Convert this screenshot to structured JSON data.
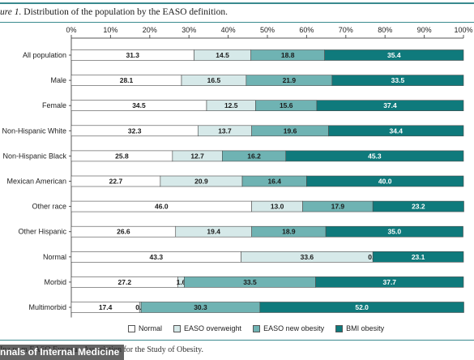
{
  "figure": {
    "label": "ure 1.",
    "title": "Distribution of the population by the EASO definition."
  },
  "footnote": {
    "text": "Ina    ro  m  EASO   Eur  pean Association for the Study of Obesity."
  },
  "brand": {
    "text": "nnals of Internal Medicine"
  },
  "colors": {
    "normal": "#ffffff",
    "easo_overweight": "#d6e9e9",
    "easo_new_obesity": "#6fb3b3",
    "bmi_obesity": "#0f7a7c"
  },
  "chart_data": {
    "type": "bar",
    "orientation": "horizontal",
    "stacked": true,
    "title": "Distribution of the population by the EASO definition.",
    "xlim": [
      0,
      100
    ],
    "x_ticks": [
      "0%",
      "10%",
      "20%",
      "30%",
      "40%",
      "50%",
      "60%",
      "70%",
      "80%",
      "90%",
      "100%"
    ],
    "legend_position": "bottom",
    "categories": [
      "All population",
      "Male",
      "Female",
      "Non-Hispanic White",
      "Non-Hispanic Black",
      "Mexican American",
      "Other race",
      "Other Hispanic",
      "Normal",
      "Morbid",
      "Multimorbid"
    ],
    "series": [
      {
        "name": "Normal",
        "values": [
          31.3,
          28.1,
          34.5,
          32.3,
          25.8,
          22.7,
          46.0,
          26.6,
          43.3,
          27.2,
          17.4
        ]
      },
      {
        "name": "EASO overweight",
        "values": [
          14.5,
          16.5,
          12.5,
          13.7,
          12.7,
          20.9,
          13.0,
          19.4,
          33.6,
          1.6,
          0.4
        ]
      },
      {
        "name": "EASO new obesity",
        "values": [
          18.8,
          21.9,
          15.6,
          19.6,
          16.2,
          16.4,
          17.9,
          18.9,
          0.0,
          33.5,
          30.3
        ]
      },
      {
        "name": "BMI obesity",
        "values": [
          35.4,
          33.5,
          37.4,
          34.4,
          45.3,
          40.0,
          23.2,
          35.0,
          23.1,
          37.7,
          52.0
        ]
      }
    ],
    "labels": [
      [
        "31.3",
        "14.5",
        "18.8",
        "35.4"
      ],
      [
        "28.1",
        "16.5",
        "21.9",
        "33.5"
      ],
      [
        "34.5",
        "12.5",
        "15.6",
        "37.4"
      ],
      [
        "32.3",
        "13.7",
        "19.6",
        "34.4"
      ],
      [
        "25.8",
        "12.7",
        "16.2",
        "45.3"
      ],
      [
        "22.7",
        "20.9",
        "16.4",
        "40.0"
      ],
      [
        "46.0",
        "13.0",
        "17.9",
        "23.2"
      ],
      [
        "26.6",
        "19.4",
        "18.9",
        "35.0"
      ],
      [
        "43.3",
        "33.6",
        "0.0",
        "23.1"
      ],
      [
        "27.2",
        "1.6",
        "33.5",
        "37.7"
      ],
      [
        "17.4",
        "0.4",
        "30.3",
        "52.0"
      ]
    ]
  }
}
